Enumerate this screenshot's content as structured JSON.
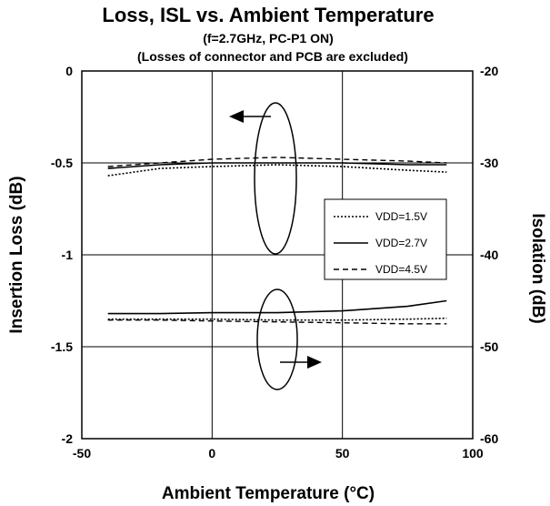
{
  "chart_data": {
    "type": "line",
    "title": "Loss, ISL vs. Ambient Temperature",
    "subtitle_lines": [
      "(f=2.7GHz, PC-P1 ON)",
      "(Losses of connector and PCB are excluded)"
    ],
    "xlabel": "Ambient Temperature (°C)",
    "ylabel_left": "Insertion Loss (dB)",
    "ylabel_right": "Isolation (dB)",
    "xlim": [
      -50,
      100
    ],
    "ylim_left": [
      -2,
      0
    ],
    "ylim_right": [
      -60,
      -20
    ],
    "x_ticks": [
      "-50",
      "0",
      "50",
      "100"
    ],
    "y_ticks_left": [
      "0",
      "-0.5",
      "-1",
      "-1.5",
      "-2"
    ],
    "y_ticks_right": [
      "-20",
      "-30",
      "-40",
      "-50",
      "-60"
    ],
    "grid": true,
    "legend_position": "center-right",
    "insertion_loss": [
      {
        "name": "VDD=1.5V",
        "style": "dotted",
        "x": [
          -40,
          -20,
          0,
          25,
          50,
          75,
          90
        ],
        "y": [
          -0.57,
          -0.53,
          -0.52,
          -0.51,
          -0.52,
          -0.54,
          -0.55
        ]
      },
      {
        "name": "VDD=2.7V",
        "style": "solid",
        "x": [
          -40,
          -20,
          0,
          25,
          50,
          75,
          90
        ],
        "y": [
          -0.53,
          -0.51,
          -0.5,
          -0.5,
          -0.5,
          -0.51,
          -0.51
        ]
      },
      {
        "name": "VDD=4.5V",
        "style": "dashed",
        "x": [
          -40,
          -20,
          0,
          25,
          50,
          75,
          90
        ],
        "y": [
          -0.52,
          -0.5,
          -0.48,
          -0.47,
          -0.48,
          -0.49,
          -0.5
        ]
      }
    ],
    "isolation": [
      {
        "name": "VDD=1.5V",
        "style": "dotted",
        "x": [
          -40,
          -20,
          0,
          25,
          50,
          75,
          90
        ],
        "y": [
          -47.0,
          -47.0,
          -47.0,
          -47.1,
          -47.1,
          -47.0,
          -46.9
        ]
      },
      {
        "name": "VDD=2.7V",
        "style": "solid",
        "x": [
          -40,
          -20,
          0,
          25,
          50,
          75,
          90
        ],
        "y": [
          -46.4,
          -46.4,
          -46.3,
          -46.3,
          -46.1,
          -45.6,
          -45.0
        ]
      },
      {
        "name": "VDD=4.5V",
        "style": "dashed",
        "x": [
          -40,
          -20,
          0,
          25,
          50,
          75,
          90
        ],
        "y": [
          -47.1,
          -47.1,
          -47.2,
          -47.3,
          -47.4,
          -47.5,
          -47.5
        ]
      }
    ],
    "legend": [
      "VDD=1.5V",
      "VDD=2.7V",
      "VDD=4.5V"
    ]
  }
}
